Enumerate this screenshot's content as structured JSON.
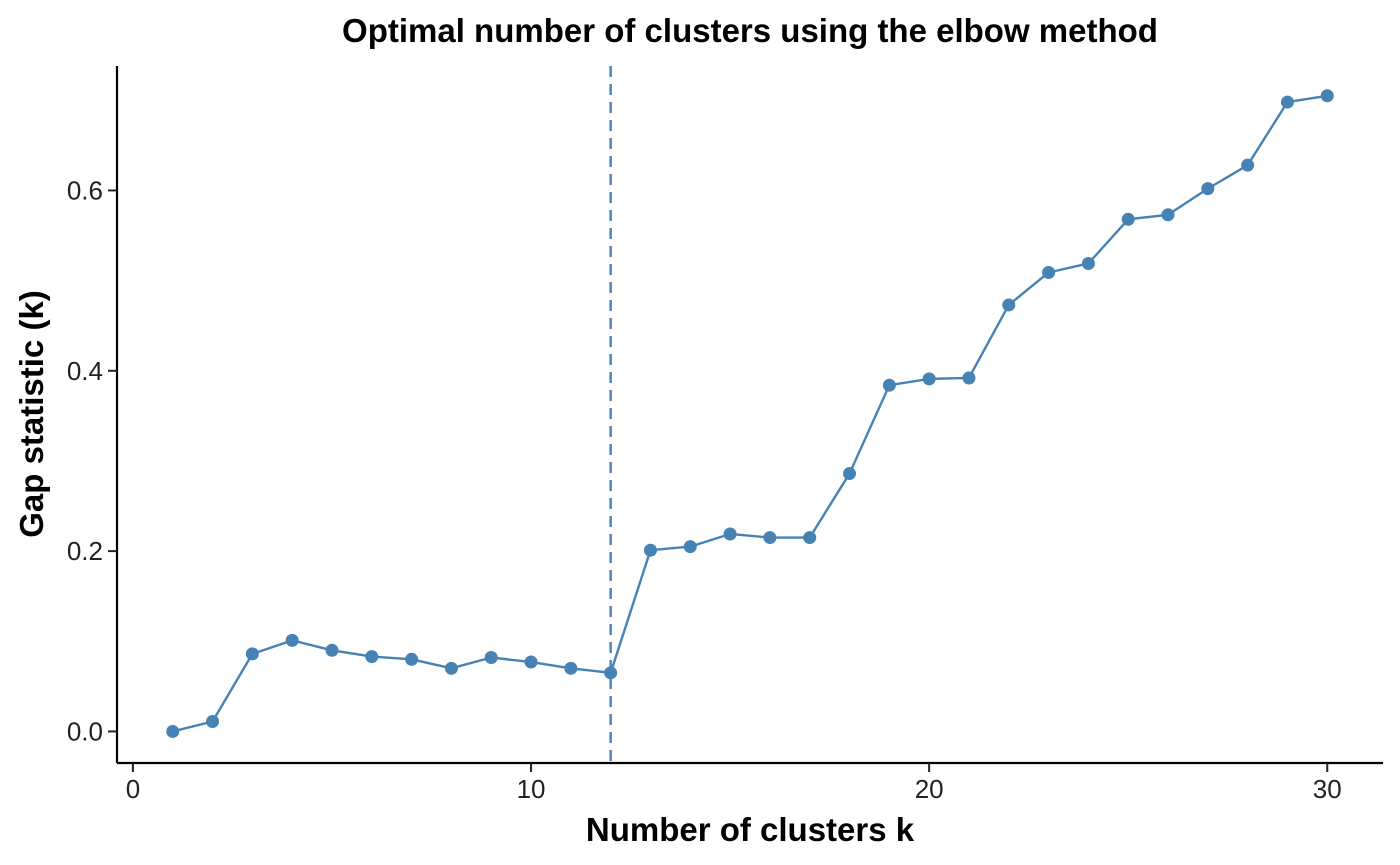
{
  "chart_data": {
    "type": "line",
    "title": "Optimal number of clusters using the elbow method",
    "xlabel": "Number of clusters k",
    "ylabel": "Gap statistic (k)",
    "xlim": [
      -0.4,
      31.4
    ],
    "ylim": [
      -0.035,
      0.738
    ],
    "x_ticks": [
      0,
      10,
      20,
      30
    ],
    "x_tick_labels": [
      "0",
      "10",
      "20",
      "30"
    ],
    "y_ticks": [
      0.0,
      0.2,
      0.4,
      0.6
    ],
    "y_tick_labels": [
      "0.0",
      "0.2",
      "0.4",
      "0.6"
    ],
    "grid": false,
    "color": "#4682B4",
    "vline": {
      "x": 12,
      "style": "dashed"
    },
    "series": [
      {
        "x": [
          1,
          2,
          3,
          4,
          5,
          6,
          7,
          8,
          9,
          10,
          11,
          12,
          13,
          14,
          15,
          16,
          17,
          18,
          19,
          20,
          21,
          22,
          23,
          24,
          25,
          26,
          27,
          28,
          29,
          30
        ],
        "values": [
          0.0,
          0.011,
          0.086,
          0.101,
          0.09,
          0.083,
          0.08,
          0.07,
          0.082,
          0.077,
          0.07,
          0.065,
          0.201,
          0.205,
          0.219,
          0.215,
          0.215,
          0.286,
          0.384,
          0.391,
          0.392,
          0.473,
          0.509,
          0.519,
          0.568,
          0.573,
          0.602,
          0.628,
          0.698,
          0.705
        ]
      }
    ]
  }
}
